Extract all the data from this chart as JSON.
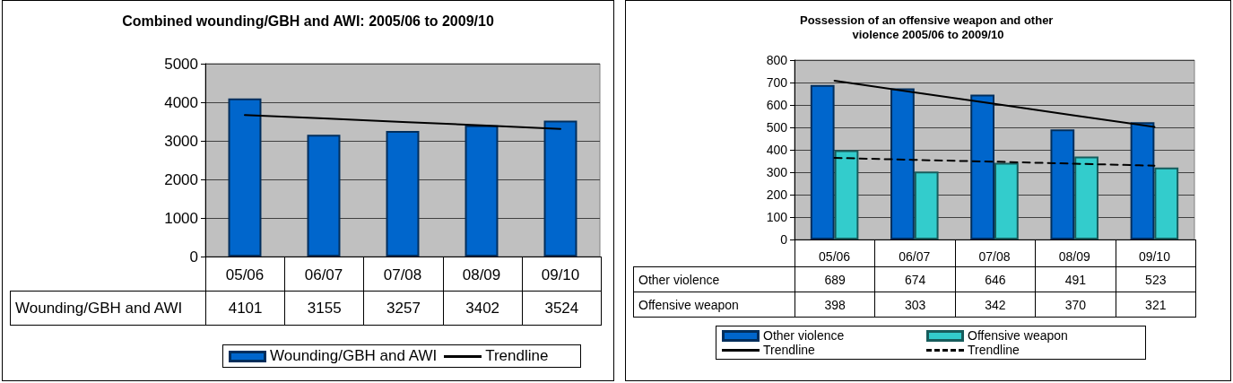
{
  "chart_data": [
    {
      "type": "bar",
      "title": "Combined wounding/GBH and AWI: 2005/06 to 2009/10",
      "categories": [
        "05/06",
        "06/07",
        "07/08",
        "08/09",
        "09/10"
      ],
      "series": [
        {
          "name": "Wounding/GBH and AWI",
          "color": "#0066cc",
          "values": [
            4101,
            3155,
            3257,
            3402,
            3524
          ],
          "value_labels": [
            "4101",
            "3155",
            "3257",
            "3402",
            "3524"
          ]
        },
        {
          "name": "Trendline",
          "type": "line",
          "color": "#000000",
          "line_style": "solid",
          "values": [
            3670,
            3580,
            3490,
            3400,
            3310
          ]
        }
      ],
      "ylim": [
        0,
        5000
      ],
      "yticks": [
        0,
        1000,
        2000,
        3000,
        4000,
        5000
      ],
      "grid": "y",
      "legend": "bottom",
      "marker": "none"
    },
    {
      "type": "bar",
      "title": "Possession of an offensive weapon and other violence 2005/06 to 2009/10",
      "categories": [
        "05/06",
        "06/07",
        "07/08",
        "08/09",
        "09/10"
      ],
      "series": [
        {
          "name": "Other violence",
          "color": "#0066cc",
          "values": [
            689,
            674,
            646,
            491,
            523
          ],
          "value_labels": [
            "689",
            "674",
            "646",
            "491",
            "523"
          ]
        },
        {
          "name": "Offensive weapon",
          "color": "#33cccc",
          "values": [
            398,
            303,
            342,
            370,
            321
          ],
          "value_labels": [
            "398",
            "303",
            "342",
            "370",
            "321"
          ]
        },
        {
          "name": "Trendline",
          "type": "line",
          "color": "#000000",
          "line_style": "solid",
          "values": [
            708,
            656,
            605,
            553,
            502
          ]
        },
        {
          "name": "Trendline",
          "type": "line",
          "color": "#000000",
          "line_style": "dashed",
          "values": [
            364,
            355,
            347,
            338,
            329
          ]
        }
      ],
      "ylim": [
        0,
        800
      ],
      "yticks": [
        0,
        100,
        200,
        300,
        400,
        500,
        600,
        700,
        800
      ],
      "grid": "y",
      "legend": "bottom",
      "marker": "none"
    }
  ]
}
